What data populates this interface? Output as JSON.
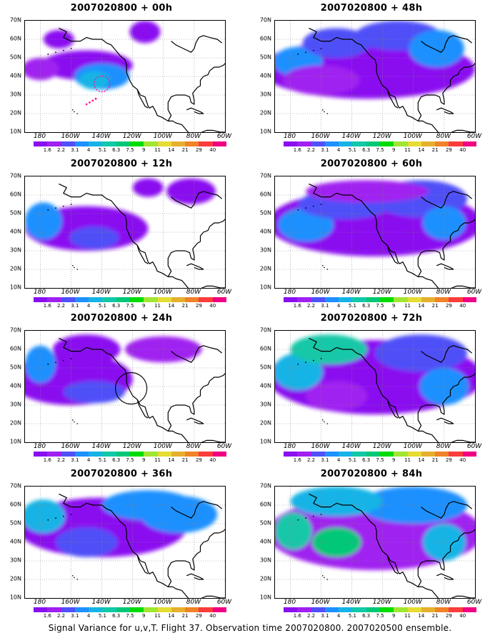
{
  "caption": "Signal Variance for u,v,T. Flight 37. Observation time 2007020800. 2007020500 ensemble.",
  "panels": [
    {
      "title": "2007020800  + 00h",
      "lead_hours": 0
    },
    {
      "title": "2007020800  + 48h",
      "lead_hours": 48
    },
    {
      "title": "2007020800  + 12h",
      "lead_hours": 12
    },
    {
      "title": "2007020800  + 60h",
      "lead_hours": 60
    },
    {
      "title": "2007020800  + 24h",
      "lead_hours": 24
    },
    {
      "title": "2007020800  + 72h",
      "lead_hours": 72
    },
    {
      "title": "2007020800  + 36h",
      "lead_hours": 36
    },
    {
      "title": "2007020800  + 84h",
      "lead_hours": 84
    }
  ],
  "lat_labels": [
    "70N",
    "60N",
    "50N",
    "40N",
    "30N",
    "20N",
    "10N"
  ],
  "lon_labels": [
    "180",
    "160W",
    "140W",
    "120W",
    "100W",
    "80W",
    "60W"
  ],
  "colorbar": {
    "labels": [
      "1.6",
      "2.2",
      "3.1",
      "4",
      "5.1",
      "6.3",
      "7.5",
      "9",
      "11",
      "14",
      "21",
      "29",
      "40"
    ],
    "colors": [
      "#8a0ff0",
      "#a020f0",
      "#5050f8",
      "#1e90ff",
      "#16b4e6",
      "#12c8a8",
      "#00c878",
      "#00dc00",
      "#a0e632",
      "#e6dc32",
      "#e6af2d",
      "#f08228",
      "#fa3c3c",
      "#f00082"
    ]
  },
  "colors": {
    "land_outline": "#000000",
    "grid": "#888888",
    "no_data": "#ffffff",
    "observation_marker": "#ff1493"
  }
}
